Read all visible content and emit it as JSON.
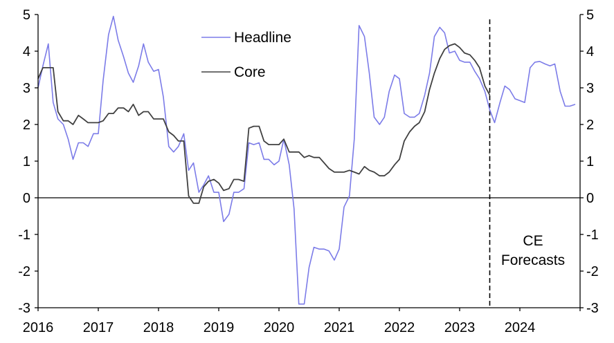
{
  "chart_data": {
    "type": "line",
    "title": "",
    "xlabel": "",
    "ylabel": "",
    "xlim": [
      2016.0,
      2025.0
    ],
    "ylim": [
      -3,
      5
    ],
    "y_ticks": [
      5,
      4,
      3,
      2,
      1,
      0,
      -1,
      -2,
      -3
    ],
    "y_tick_labels": [
      "5",
      "4",
      "3",
      "2",
      "1",
      "0",
      "-1",
      "-2",
      "-3"
    ],
    "x_ticks": [
      2016,
      2017,
      2018,
      2019,
      2020,
      2021,
      2022,
      2023,
      2024
    ],
    "x_tick_labels": [
      "2016",
      "2017",
      "2018",
      "2019",
      "2020",
      "2021",
      "2022",
      "2023",
      "2024"
    ],
    "dual_y_axis": true,
    "zero_line": true,
    "grid": false,
    "legend": {
      "position": "top-center",
      "entries": [
        "Headline",
        "Core"
      ]
    },
    "forecast_start": 2023.5,
    "annotation": {
      "lines": [
        "CE",
        "Forecasts"
      ]
    },
    "colors": {
      "Headline": "#7B7BE8",
      "Core": "#404040"
    },
    "series": [
      {
        "name": "Headline",
        "x": [
          2016.0,
          2016.08,
          2016.17,
          2016.25,
          2016.33,
          2016.42,
          2016.5,
          2016.58,
          2016.67,
          2016.75,
          2016.83,
          2016.92,
          2017.0,
          2017.08,
          2017.17,
          2017.25,
          2017.33,
          2017.42,
          2017.5,
          2017.58,
          2017.67,
          2017.75,
          2017.83,
          2017.92,
          2018.0,
          2018.08,
          2018.17,
          2018.25,
          2018.33,
          2018.42,
          2018.5,
          2018.58,
          2018.67,
          2018.75,
          2018.83,
          2018.92,
          2019.0,
          2019.08,
          2019.17,
          2019.25,
          2019.33,
          2019.42,
          2019.5,
          2019.58,
          2019.67,
          2019.75,
          2019.83,
          2019.92,
          2020.0,
          2020.08,
          2020.17,
          2020.25,
          2020.33,
          2020.42,
          2020.5,
          2020.58,
          2020.67,
          2020.75,
          2020.83,
          2020.92,
          2021.0,
          2021.08,
          2021.17,
          2021.25,
          2021.33,
          2021.42,
          2021.5,
          2021.58,
          2021.67,
          2021.75,
          2021.83,
          2021.92,
          2022.0,
          2022.08,
          2022.17,
          2022.25,
          2022.33,
          2022.42,
          2022.5,
          2022.58,
          2022.67,
          2022.75,
          2022.83,
          2022.92,
          2023.0,
          2023.08,
          2023.17,
          2023.25,
          2023.33,
          2023.42,
          2023.5,
          2023.58,
          2023.67,
          2023.75,
          2023.83,
          2023.92,
          2024.0,
          2024.08,
          2024.17,
          2024.25,
          2024.33,
          2024.42,
          2024.5,
          2024.58,
          2024.67,
          2024.75,
          2024.83,
          2024.92
        ],
        "values": [
          3.0,
          3.6,
          4.2,
          2.6,
          2.15,
          2.0,
          1.6,
          1.05,
          1.5,
          1.5,
          1.4,
          1.75,
          1.75,
          3.2,
          4.45,
          4.95,
          4.3,
          3.85,
          3.4,
          3.15,
          3.6,
          4.2,
          3.7,
          3.45,
          3.5,
          2.75,
          1.4,
          1.25,
          1.4,
          1.75,
          0.75,
          0.95,
          0.15,
          0.35,
          0.6,
          0.15,
          0.15,
          -0.65,
          -0.45,
          0.15,
          0.15,
          0.25,
          1.5,
          1.45,
          1.5,
          1.05,
          1.05,
          0.9,
          1.0,
          1.6,
          0.9,
          -0.3,
          -2.9,
          -2.9,
          -1.9,
          -1.35,
          -1.4,
          -1.4,
          -1.45,
          -1.7,
          -1.4,
          -0.25,
          0.05,
          1.6,
          4.7,
          4.4,
          3.4,
          2.2,
          2.0,
          2.2,
          2.9,
          3.35,
          3.25,
          2.3,
          2.2,
          2.2,
          2.3,
          2.8,
          3.4,
          4.4,
          4.65,
          4.5,
          3.95,
          4.0,
          3.75,
          3.7,
          3.7,
          3.45,
          3.25,
          2.9,
          2.4,
          2.05,
          2.6,
          3.05,
          2.95,
          2.7,
          2.65,
          2.6,
          3.55,
          3.7,
          3.72,
          3.65,
          3.6,
          3.65,
          2.9,
          2.5,
          2.5,
          2.55
        ]
      },
      {
        "name": "Core",
        "x": [
          2016.0,
          2016.08,
          2016.17,
          2016.25,
          2016.33,
          2016.42,
          2016.5,
          2016.58,
          2016.67,
          2016.75,
          2016.83,
          2016.92,
          2017.0,
          2017.08,
          2017.17,
          2017.25,
          2017.33,
          2017.42,
          2017.5,
          2017.58,
          2017.67,
          2017.75,
          2017.83,
          2017.92,
          2018.0,
          2018.08,
          2018.17,
          2018.25,
          2018.33,
          2018.42,
          2018.5,
          2018.58,
          2018.67,
          2018.75,
          2018.83,
          2018.92,
          2019.0,
          2019.08,
          2019.17,
          2019.25,
          2019.33,
          2019.42,
          2019.5,
          2019.58,
          2019.67,
          2019.75,
          2019.83,
          2019.92,
          2020.0,
          2020.08,
          2020.17,
          2020.25,
          2020.33,
          2020.42,
          2020.5,
          2020.58,
          2020.67,
          2020.75,
          2020.83,
          2020.92,
          2021.0,
          2021.08,
          2021.17,
          2021.25,
          2021.33,
          2021.42,
          2021.5,
          2021.58,
          2021.67,
          2021.75,
          2021.83,
          2021.92,
          2022.0,
          2022.08,
          2022.17,
          2022.25,
          2022.33,
          2022.42,
          2022.5,
          2022.58,
          2022.67,
          2022.75,
          2022.83,
          2022.92,
          2023.0,
          2023.08,
          2023.17,
          2023.25,
          2023.33,
          2023.42,
          2023.5
        ],
        "values": [
          3.25,
          3.55,
          3.55,
          3.55,
          2.35,
          2.1,
          2.1,
          2.0,
          2.25,
          2.15,
          2.05,
          2.05,
          2.05,
          2.1,
          2.3,
          2.3,
          2.45,
          2.45,
          2.35,
          2.55,
          2.25,
          2.35,
          2.35,
          2.15,
          2.15,
          2.15,
          1.8,
          1.7,
          1.55,
          1.55,
          0.05,
          -0.15,
          -0.15,
          0.3,
          0.45,
          0.5,
          0.4,
          0.2,
          0.25,
          0.5,
          0.5,
          0.45,
          1.9,
          1.95,
          1.95,
          1.55,
          1.45,
          1.45,
          1.45,
          1.6,
          1.25,
          1.25,
          1.25,
          1.1,
          1.15,
          1.1,
          1.1,
          0.95,
          0.8,
          0.7,
          0.7,
          0.7,
          0.75,
          0.7,
          0.65,
          0.85,
          0.75,
          0.7,
          0.6,
          0.6,
          0.7,
          0.9,
          1.05,
          1.55,
          1.8,
          1.95,
          2.05,
          2.35,
          2.95,
          3.4,
          3.8,
          4.05,
          4.15,
          4.2,
          4.1,
          3.95,
          3.9,
          3.75,
          3.55,
          3.05,
          2.8
        ]
      }
    ]
  }
}
